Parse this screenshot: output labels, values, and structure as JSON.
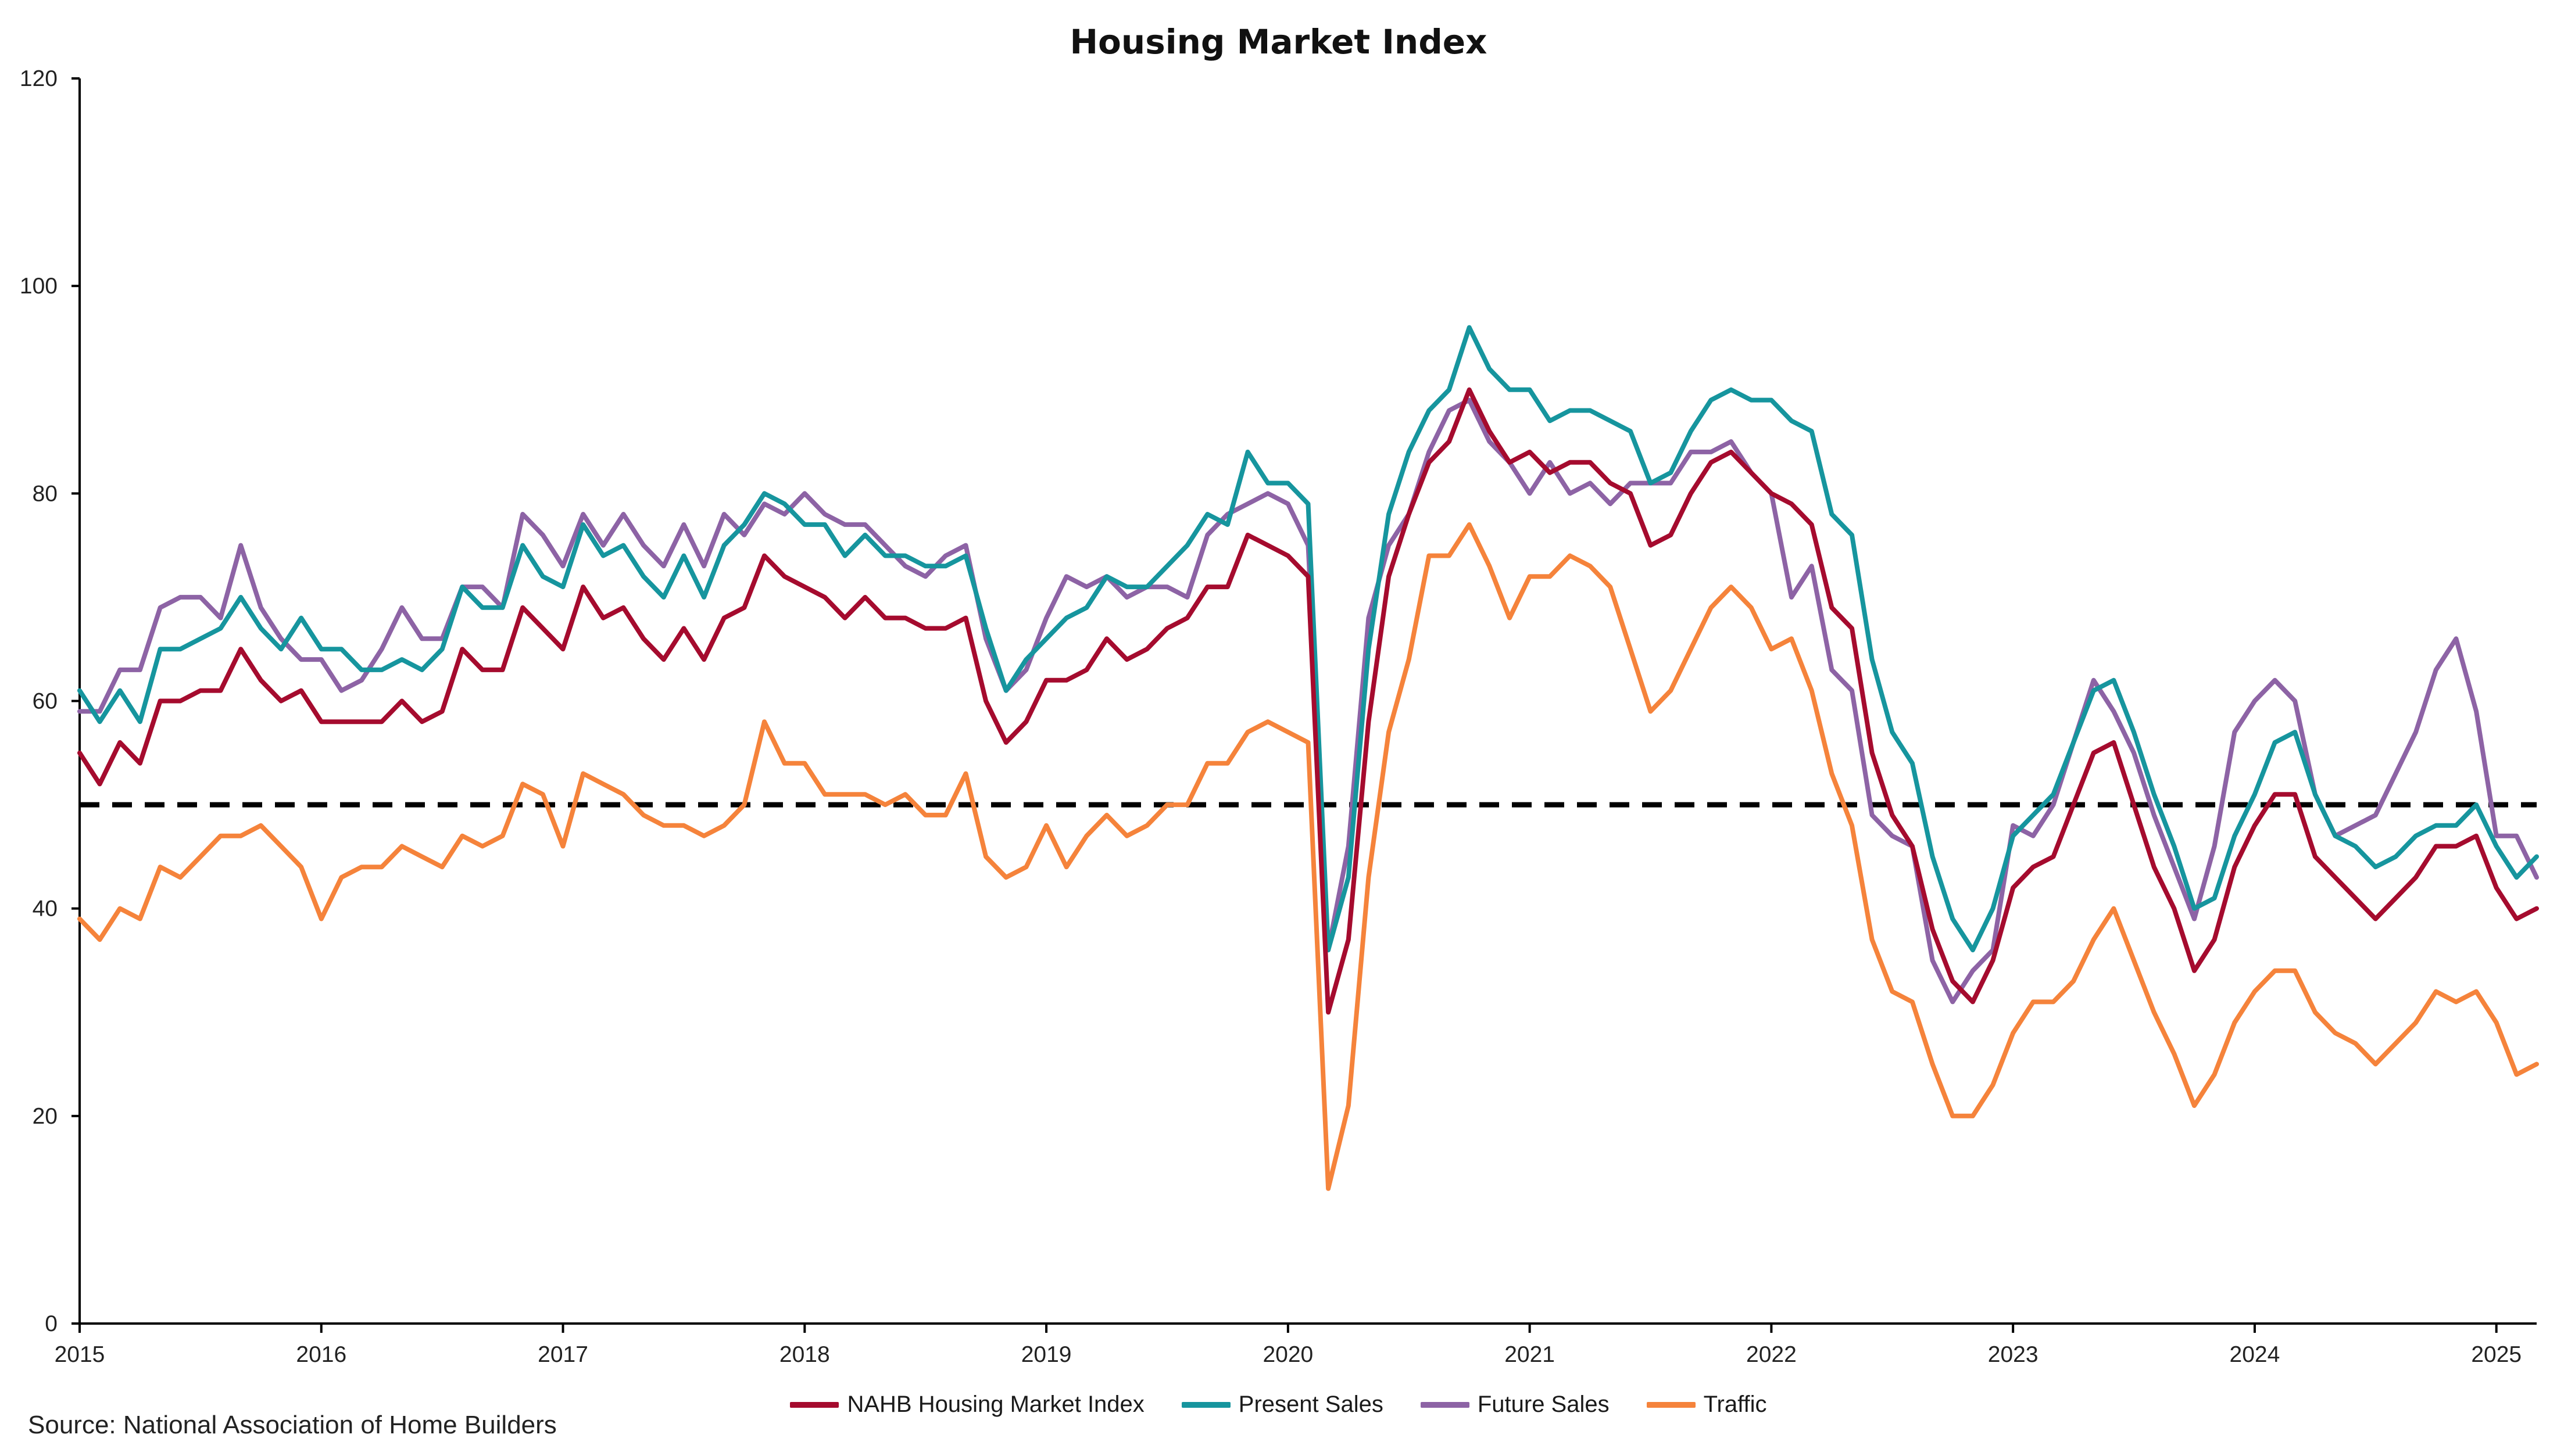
{
  "chart_data": {
    "type": "line",
    "title": "Housing Market Index",
    "source": "Source: National Association of Home Builders",
    "xlabel": "",
    "ylabel": "",
    "ylim": [
      0,
      120
    ],
    "y_ticks": [
      "0",
      "20",
      "40",
      "60",
      "80",
      "100",
      "120"
    ],
    "x_ticks": [
      "2015",
      "2016",
      "2017",
      "2018",
      "2019",
      "2020",
      "2021",
      "2022",
      "2023",
      "2024",
      "2025"
    ],
    "x_start": "2015-01",
    "x_end": "2025-03",
    "reference_line": {
      "y": 50,
      "style": "dashed",
      "color": "#000000"
    },
    "grid": false,
    "legend": "bottom",
    "series": [
      {
        "name": "NAHB Housing Market Index",
        "color": "#a50b2e",
        "values": [
          55,
          52,
          56,
          54,
          60,
          60,
          61,
          61,
          65,
          62,
          60,
          61,
          58,
          58,
          58,
          58,
          60,
          58,
          59,
          65,
          63,
          63,
          69,
          67,
          65,
          71,
          68,
          69,
          66,
          64,
          67,
          64,
          68,
          69,
          74,
          72,
          71,
          70,
          68,
          70,
          68,
          68,
          67,
          67,
          68,
          60,
          56,
          58,
          62,
          62,
          63,
          66,
          64,
          65,
          67,
          68,
          71,
          71,
          76,
          75,
          74,
          72,
          30,
          37,
          58,
          72,
          78,
          83,
          85,
          90,
          86,
          83,
          84,
          82,
          83,
          83,
          81,
          80,
          75,
          76,
          80,
          83,
          84,
          82,
          80,
          79,
          77,
          69,
          67,
          55,
          49,
          46,
          38,
          33,
          31,
          35,
          42,
          44,
          45,
          50,
          55,
          56,
          50,
          44,
          40,
          34,
          37,
          44,
          48,
          51,
          51,
          45,
          43,
          41,
          39,
          41,
          43,
          46,
          46,
          47,
          42,
          39,
          40
        ]
      },
      {
        "name": "Present Sales",
        "color": "#16959e",
        "values": [
          61,
          58,
          61,
          58,
          65,
          65,
          66,
          67,
          70,
          67,
          65,
          68,
          65,
          65,
          63,
          63,
          64,
          63,
          65,
          71,
          69,
          69,
          75,
          72,
          71,
          77,
          74,
          75,
          72,
          70,
          74,
          70,
          75,
          77,
          80,
          79,
          77,
          77,
          74,
          76,
          74,
          74,
          73,
          73,
          74,
          67,
          61,
          64,
          66,
          68,
          69,
          72,
          71,
          71,
          73,
          75,
          78,
          77,
          84,
          81,
          81,
          79,
          36,
          43,
          65,
          78,
          84,
          88,
          90,
          96,
          92,
          90,
          90,
          87,
          88,
          88,
          87,
          86,
          81,
          82,
          86,
          89,
          90,
          89,
          89,
          87,
          86,
          78,
          76,
          64,
          57,
          54,
          45,
          39,
          36,
          40,
          47,
          49,
          51,
          56,
          61,
          62,
          57,
          51,
          46,
          40,
          41,
          47,
          51,
          56,
          57,
          51,
          47,
          46,
          44,
          45,
          47,
          48,
          48,
          50,
          46,
          43,
          45
        ]
      },
      {
        "name": "Future Sales",
        "color": "#8d63a5",
        "values": [
          59,
          59,
          63,
          63,
          69,
          70,
          70,
          68,
          75,
          69,
          66,
          64,
          64,
          61,
          62,
          65,
          69,
          66,
          66,
          71,
          71,
          69,
          78,
          76,
          73,
          78,
          75,
          78,
          75,
          73,
          77,
          73,
          78,
          76,
          79,
          78,
          80,
          78,
          77,
          77,
          75,
          73,
          72,
          74,
          75,
          66,
          61,
          63,
          68,
          72,
          71,
          72,
          70,
          71,
          71,
          70,
          76,
          78,
          79,
          80,
          79,
          75,
          36,
          46,
          68,
          75,
          78,
          84,
          88,
          89,
          85,
          83,
          80,
          83,
          80,
          81,
          79,
          81,
          81,
          81,
          84,
          84,
          85,
          82,
          80,
          70,
          73,
          63,
          61,
          49,
          47,
          46,
          35,
          31,
          34,
          36,
          48,
          47,
          50,
          56,
          62,
          59,
          55,
          49,
          44,
          39,
          46,
          57,
          60,
          62,
          60,
          51,
          47,
          48,
          49,
          53,
          57,
          63,
          66,
          59,
          47,
          47,
          43
        ]
      },
      {
        "name": "Traffic",
        "color": "#f5833b",
        "values": [
          39,
          37,
          40,
          39,
          44,
          43,
          45,
          47,
          47,
          48,
          46,
          44,
          39,
          43,
          44,
          44,
          46,
          45,
          44,
          47,
          46,
          47,
          52,
          51,
          46,
          53,
          52,
          51,
          49,
          48,
          48,
          47,
          48,
          50,
          58,
          54,
          54,
          51,
          51,
          51,
          50,
          51,
          49,
          49,
          53,
          45,
          43,
          44,
          48,
          44,
          47,
          49,
          47,
          48,
          50,
          50,
          54,
          54,
          57,
          58,
          57,
          56,
          13,
          21,
          43,
          57,
          64,
          74,
          74,
          77,
          73,
          68,
          72,
          72,
          74,
          73,
          71,
          65,
          59,
          61,
          65,
          69,
          71,
          69,
          65,
          66,
          61,
          53,
          48,
          37,
          32,
          31,
          25,
          20,
          20,
          23,
          28,
          31,
          31,
          33,
          37,
          40,
          35,
          30,
          26,
          21,
          24,
          29,
          32,
          34,
          34,
          30,
          28,
          27,
          25,
          27,
          29,
          32,
          31,
          32,
          29,
          24,
          25
        ]
      }
    ]
  }
}
